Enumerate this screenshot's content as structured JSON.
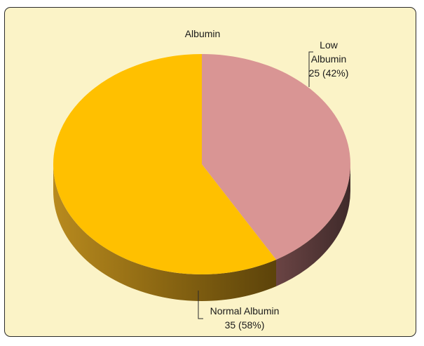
{
  "chart_data": {
    "type": "pie",
    "title": "Albumin",
    "slices": [
      {
        "label": "Low Albumin",
        "value": 25,
        "percent": "42%",
        "color": "#d99594",
        "side_color": "#5a3a3a"
      },
      {
        "label": "Normal Albumin",
        "value": 35,
        "percent": "58%",
        "color": "#ffc000",
        "side_color": "#7a5c10"
      }
    ],
    "data_labels": {
      "low": {
        "line1": "Low",
        "line2": "Albumin",
        "line3": "25 (42%)"
      },
      "normal": {
        "line1": "Normal Albumin",
        "line2": "35 (58%)"
      }
    },
    "style": "3d-pie",
    "legend": "none",
    "background_color": "#fbf3c7"
  }
}
